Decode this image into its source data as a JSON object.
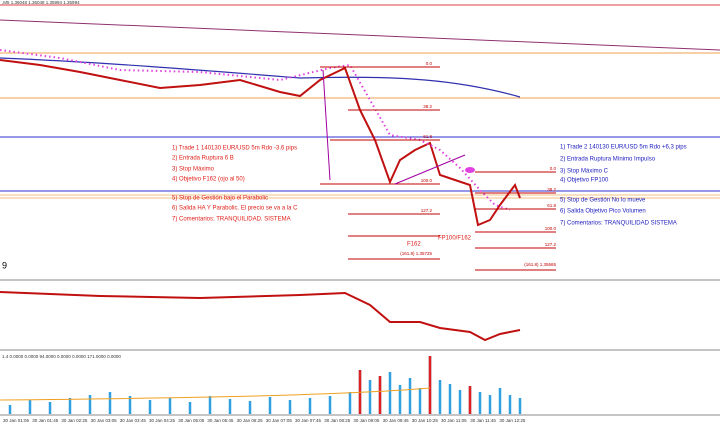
{
  "header": {
    "symbol_info": ",M5 1.36048 1.36048 1.35994 1.35994"
  },
  "fibo_left": [
    "0.0",
    "38.2",
    "61.8",
    "100.0",
    "127.2",
    "(161.8) 1.35725"
  ],
  "fibo_right": [
    "0.0",
    "38.2",
    "61.8",
    "100.0",
    "127.2",
    "(161.8) 1.35665"
  ],
  "notes_left": [
    "1) Trade 1 140130 EUR/USD 5m Rdo -3.6 pips",
    "2) Entrada Ruptura 6 B",
    "3) Stop Máximo",
    "4) Objetivo F162 (ojo al 50)",
    "5) Stop de Gestión bajo el Parabolic",
    "6) Salida HA Y Parabolic. El precio se va a la C",
    "7) Comentarios: TRANQUILIDAD. SISTEMA"
  ],
  "notes_right": [
    "1) Trade 2 140130 EUR/USD 5m Rdo +6,3 pips",
    "2) Entrada Ruptura Mínimo Impulso",
    "3) Stop Máximo C",
    "4) Objetivo FP100",
    "5) Stop de Gestión No lo mueve",
    "6) Salida Objetivo Pico Volumen",
    "7) Comentarios: TRANQUILIDAD SISTEMA"
  ],
  "labels": {
    "f162": "F162",
    "fp100": "FP100/F162",
    "window_number": "9"
  },
  "volume_header": "1.4 0.0000 0.0000 94.0000 0.0000 0.0000 171.0000 0.0000",
  "time_axis": [
    "30 Jan 01:05",
    "30 Jan 01:45",
    "30 Jan 02:25",
    "30 Jan 03:05",
    "30 Jan 03:45",
    "30 Jan 04:25",
    "30 Jan 05:05",
    "30 Jan 05:45",
    "30 Jan 06:25",
    "30 Jan 07:05",
    "30 Jan 07:45",
    "30 Jan 08:25",
    "30 Jan 09:05",
    "30 Jan 09:45",
    "30 Jan 10:25",
    "30 Jan 11:05",
    "30 Jan 11:45",
    "30 Jan 12:25"
  ]
}
